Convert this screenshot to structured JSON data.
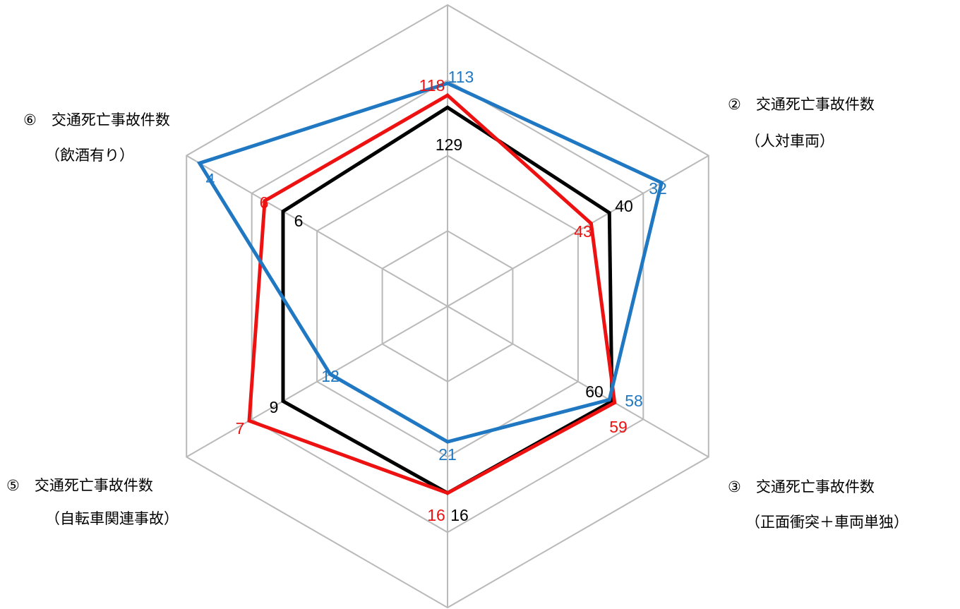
{
  "chart_data": {
    "type": "radar",
    "axes": [
      {
        "id": "axis1",
        "label_lines": []
      },
      {
        "id": "axis2",
        "label_lines": [
          "②　交通死亡事故件数",
          "（人対車両）"
        ]
      },
      {
        "id": "axis3",
        "label_lines": [
          "③　交通死亡事故件数",
          "（正面衝突＋車両単独）"
        ]
      },
      {
        "id": "axis4",
        "label_lines": []
      },
      {
        "id": "axis5",
        "label_lines": [
          "⑤　交通死亡事故件数",
          "（自転車関連事故）"
        ]
      },
      {
        "id": "axis6",
        "label_lines": [
          "⑥　交通死亡事故件数",
          "（飲酒有り）"
        ]
      }
    ],
    "grid_levels": 4,
    "series": [
      {
        "color": "#000000",
        "radius_fraction": [
          0.66,
          0.62,
          0.63,
          0.62,
          0.63,
          0.63
        ],
        "labels": [
          "129",
          "40",
          "60",
          "16",
          "9",
          "6"
        ]
      },
      {
        "color": "#ee1111",
        "radius_fraction": [
          0.7,
          0.55,
          0.64,
          0.62,
          0.76,
          0.7
        ],
        "labels": [
          "118",
          "43",
          "59",
          "16",
          "7",
          "6"
        ]
      },
      {
        "color": "#1f78c1",
        "radius_fraction": [
          0.74,
          0.82,
          0.62,
          0.45,
          0.45,
          0.95
        ],
        "labels": [
          "113",
          "32",
          "58",
          "21",
          "12",
          "4"
        ]
      }
    ],
    "grid": true,
    "legend": "none"
  }
}
